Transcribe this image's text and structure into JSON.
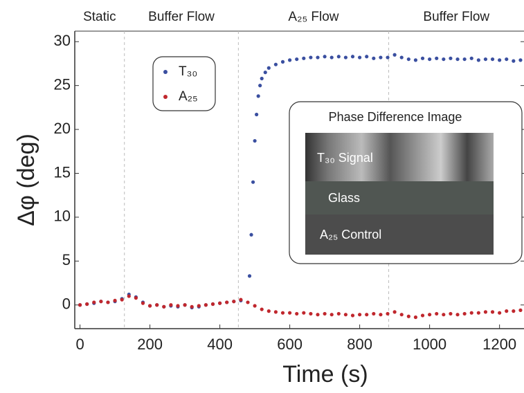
{
  "chart_data": {
    "type": "scatter",
    "xlabel": "Time (s)",
    "ylabel": "Δφ (deg)",
    "xlim": [
      -15,
      1270
    ],
    "ylim": [
      -2.7,
      31.2
    ],
    "xticks": [
      0,
      200,
      400,
      600,
      800,
      1000,
      1200
    ],
    "yticks": [
      0,
      5,
      10,
      15,
      20,
      25,
      30
    ],
    "phases": [
      "Static",
      "Buffer Flow",
      "A₂₅ Flow",
      "Buffer Flow"
    ],
    "phase_boundaries": [
      127,
      453,
      883
    ],
    "inset": {
      "title": "Phase Difference Image",
      "labels": [
        "T₃₀ Signal",
        "Glass",
        "A₂₅ Control"
      ]
    },
    "series": [
      {
        "name": "T₃₀",
        "color": "#3a4fa0",
        "x": [
          0,
          20,
          40,
          60,
          80,
          100,
          120,
          140,
          160,
          180,
          200,
          220,
          240,
          260,
          280,
          300,
          320,
          340,
          360,
          380,
          400,
          420,
          440,
          460,
          485,
          490,
          495,
          500,
          505,
          510,
          515,
          520,
          530,
          540,
          560,
          580,
          600,
          620,
          640,
          660,
          680,
          700,
          720,
          740,
          760,
          780,
          800,
          820,
          840,
          860,
          880,
          900,
          920,
          940,
          960,
          980,
          1000,
          1020,
          1040,
          1060,
          1080,
          1100,
          1120,
          1140,
          1160,
          1180,
          1200,
          1220,
          1240,
          1260
        ],
        "values": [
          0,
          0.1,
          0.2,
          0.4,
          0.3,
          0.4,
          0.7,
          1.2,
          0.9,
          0.3,
          -0.1,
          0,
          -0.2,
          -0.1,
          -0.2,
          0,
          -0.3,
          -0.2,
          0,
          0.1,
          0.2,
          0.3,
          0.4,
          0.5,
          3.3,
          8.0,
          14.0,
          18.7,
          21.7,
          23.8,
          25.0,
          25.8,
          26.5,
          27.0,
          27.4,
          27.7,
          27.9,
          28.0,
          28.1,
          28.2,
          28.2,
          28.3,
          28.2,
          28.3,
          28.2,
          28.3,
          28.2,
          28.3,
          28.1,
          28.2,
          28.2,
          28.5,
          28.2,
          28.0,
          27.9,
          28.1,
          28.0,
          28.1,
          28.0,
          28.1,
          28.0,
          28.0,
          28.1,
          27.9,
          28.0,
          28.0,
          27.9,
          28.0,
          27.8,
          27.9
        ]
      },
      {
        "name": "A₂₅",
        "color": "#c0272d",
        "x": [
          0,
          20,
          40,
          60,
          80,
          100,
          120,
          140,
          160,
          180,
          200,
          220,
          240,
          260,
          280,
          300,
          320,
          340,
          360,
          380,
          400,
          420,
          440,
          460,
          480,
          500,
          520,
          540,
          560,
          580,
          600,
          620,
          640,
          660,
          680,
          700,
          720,
          740,
          760,
          780,
          800,
          820,
          840,
          860,
          880,
          900,
          920,
          940,
          960,
          980,
          1000,
          1020,
          1040,
          1060,
          1080,
          1100,
          1120,
          1140,
          1160,
          1180,
          1200,
          1220,
          1240,
          1260
        ],
        "values": [
          0,
          0.1,
          0.3,
          0.4,
          0.3,
          0.5,
          0.6,
          1.0,
          0.8,
          0.2,
          -0.1,
          0,
          -0.2,
          0,
          -0.1,
          0,
          -0.2,
          -0.1,
          0,
          0.1,
          0.2,
          0.3,
          0.4,
          0.6,
          0.3,
          -0.1,
          -0.5,
          -0.7,
          -0.8,
          -0.9,
          -0.9,
          -1.0,
          -0.9,
          -1.0,
          -1.1,
          -1.0,
          -1.1,
          -1.0,
          -1.1,
          -1.2,
          -1.1,
          -1.1,
          -1.0,
          -1.1,
          -1.0,
          -0.8,
          -1.1,
          -1.3,
          -1.4,
          -1.2,
          -1.1,
          -1.0,
          -1.1,
          -1.0,
          -1.1,
          -1.0,
          -0.9,
          -0.9,
          -0.8,
          -0.8,
          -0.9,
          -0.7,
          -0.7,
          -0.6
        ]
      }
    ]
  }
}
